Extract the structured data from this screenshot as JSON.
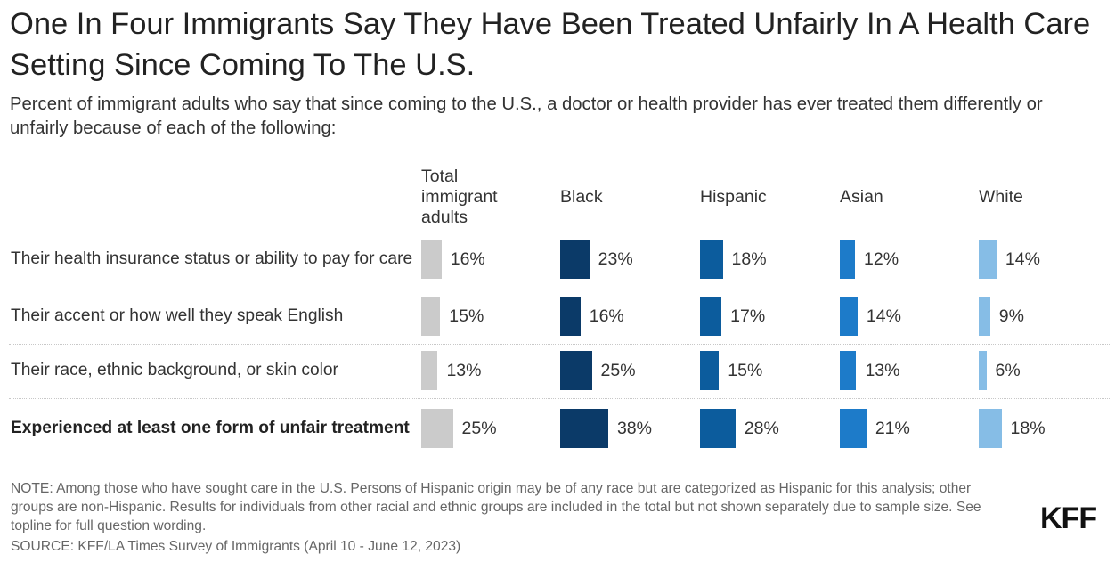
{
  "title": "One In Four Immigrants Say They Have Been Treated Unfairly In A Health Care Setting Since Coming To The U.S.",
  "subtitle": "Percent of immigrant adults who say that since coming to the U.S., a doctor or health provider has ever treated them differently or unfairly because of each of the following:",
  "note": "NOTE: Among those who have sought care in the U.S. Persons of Hispanic origin may be of any race but are categorized as Hispanic for this analysis; other groups are non-Hispanic. Results for individuals from other racial and ethnic groups are included in the total but not shown separately due to sample size. See topline for full question wording.",
  "source": "SOURCE: KFF/LA Times Survey of Immigrants (April 10 - June 12, 2023)",
  "logo": "KFF",
  "colors": {
    "Total immigrant adults": "#cbcbcb",
    "Black": "#0b3a68",
    "Hispanic": "#0c5c9d",
    "Asian": "#1d7bc9",
    "White": "#86bde6"
  },
  "chart_data": {
    "type": "bar",
    "orientation": "horizontal-small-multiples",
    "title": "One In Four Immigrants Say They Have Been Treated Unfairly In A Health Care Setting Since Coming To The U.S.",
    "units": "%",
    "categories": [
      "Their health insurance status or ability to pay for care",
      "Their accent or how well they speak English",
      "Their race, ethnic background, or skin color",
      "Experienced at least one form of unfair treatment"
    ],
    "bold_categories": [
      false,
      false,
      false,
      true
    ],
    "series": [
      {
        "name": "Total immigrant adults",
        "values": [
          16,
          15,
          13,
          25
        ]
      },
      {
        "name": "Black",
        "values": [
          23,
          16,
          25,
          38
        ]
      },
      {
        "name": "Hispanic",
        "values": [
          18,
          17,
          15,
          28
        ]
      },
      {
        "name": "Asian",
        "values": [
          12,
          14,
          13,
          21
        ]
      },
      {
        "name": "White",
        "values": [
          14,
          9,
          6,
          18
        ]
      }
    ]
  }
}
